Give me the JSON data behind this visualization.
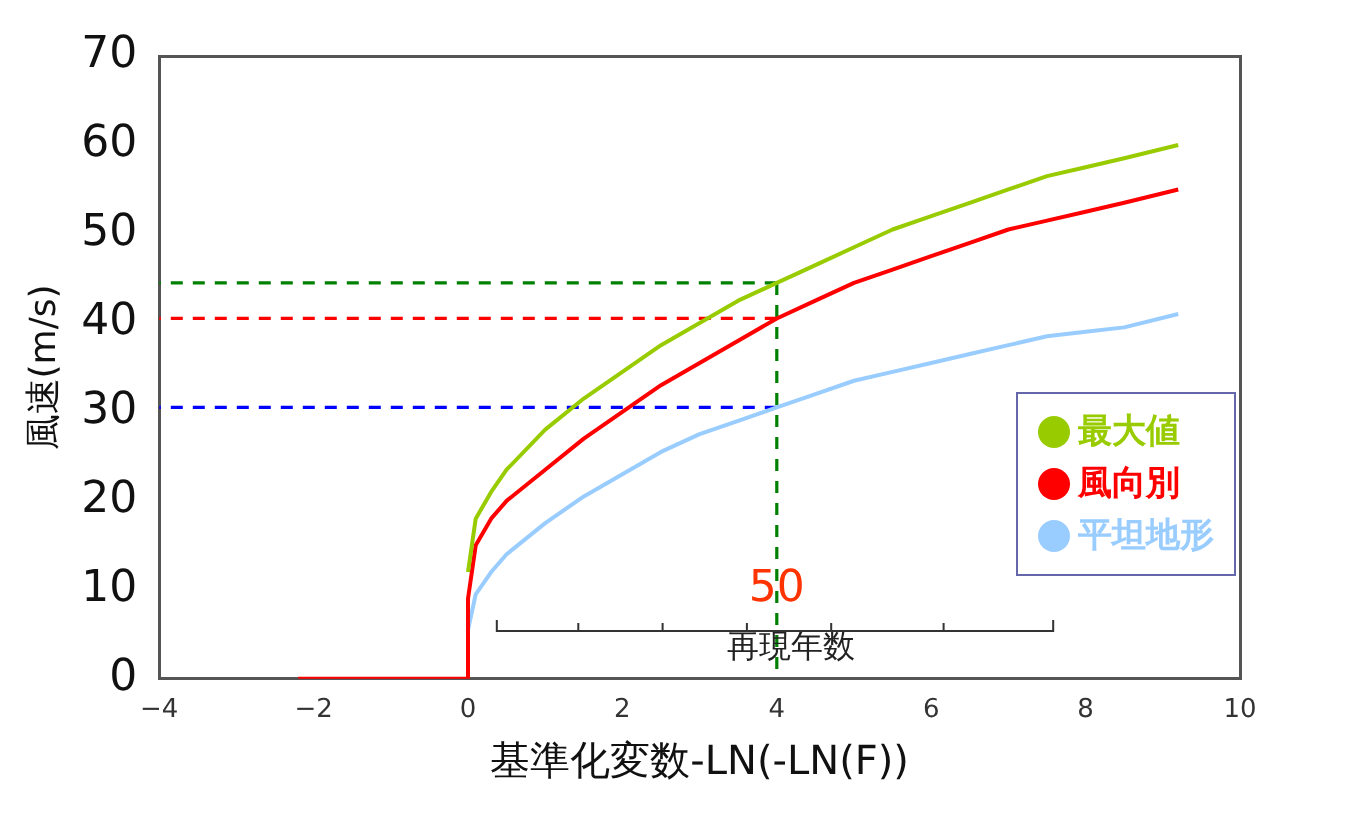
{
  "chart_data": {
    "type": "line",
    "xlabel": "基準化変数-LN(-LN(F))",
    "ylabel": "風速(m/s)",
    "xlim": [
      -4,
      10
    ],
    "xticks": [
      -4,
      -2,
      0,
      2,
      4,
      6,
      8,
      10
    ],
    "ylim": [
      0,
      70
    ],
    "yticks": [
      0,
      10,
      20,
      30,
      40,
      50,
      60,
      70
    ],
    "grid": false,
    "legend": "bottom right",
    "series": [
      {
        "name": "最大値",
        "color": "#99cc00",
        "x": [
          0,
          0.1,
          0.3,
          0.5,
          1,
          1.5,
          2,
          2.5,
          3,
          3.5,
          4,
          4.5,
          5,
          5.5,
          6,
          6.5,
          7,
          7.5,
          8,
          8.5,
          9.2
        ],
        "values": [
          12,
          18,
          21,
          23.5,
          28,
          31.5,
          34.5,
          37.5,
          40,
          42.5,
          44.5,
          46.5,
          48.5,
          50.5,
          52,
          53.5,
          55,
          56.5,
          57.5,
          58.5,
          60
        ]
      },
      {
        "name": "風向別",
        "color": "#ff0000",
        "x": [
          -2.2,
          0,
          0,
          0.1,
          0.3,
          0.5,
          1,
          1.5,
          2,
          2.5,
          3,
          3.5,
          4,
          4.5,
          5,
          5.5,
          6,
          6.5,
          7,
          7.5,
          8,
          8.5,
          9.2
        ],
        "values": [
          0,
          0,
          9,
          15,
          18,
          20,
          23.5,
          27,
          30,
          33,
          35.5,
          38,
          40.5,
          42.5,
          44.5,
          46,
          47.5,
          49,
          50.5,
          51.5,
          52.5,
          53.5,
          55
        ]
      },
      {
        "name": "平坦地形",
        "color": "#99ccff",
        "x": [
          0,
          0.1,
          0.3,
          0.5,
          1,
          1.5,
          2,
          2.5,
          3,
          3.5,
          4,
          4.5,
          5,
          5.5,
          6,
          6.5,
          7,
          7.5,
          8,
          8.5,
          9.2
        ],
        "values": [
          5.5,
          9.5,
          12,
          14,
          17.5,
          20.5,
          23,
          25.5,
          27.5,
          29,
          30.5,
          32,
          33.5,
          34.5,
          35.5,
          36.5,
          37.5,
          38.5,
          39,
          39.5,
          41
        ]
      },
      {
        "color": "#008000",
        "line_style": "dashed",
        "x": [
          4,
          -4
        ],
        "values": [
          44.5,
          44.5
        ]
      },
      {
        "color": "#ff0000",
        "line_style": "dashed",
        "x": [
          4,
          -4
        ],
        "values": [
          40.5,
          40.5
        ]
      },
      {
        "color": "#0000ff",
        "line_style": "dashed",
        "x": [
          4,
          -4
        ],
        "values": [
          30.5,
          30.5
        ]
      },
      {
        "color": "#008000",
        "line_style": "dashed",
        "x": [
          4,
          4
        ],
        "values": [
          44.5,
          0
        ]
      }
    ],
    "annotations": [
      {
        "text": "50",
        "x": 4,
        "y": 10
      },
      "再現年数"
    ]
  }
}
